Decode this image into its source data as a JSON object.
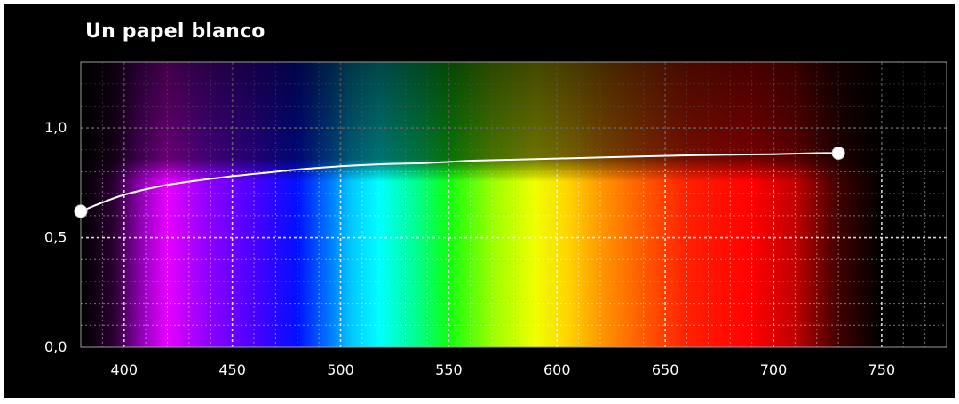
{
  "chart_data": {
    "type": "line",
    "title": "Un papel blanco",
    "xlabel": "",
    "ylabel": "",
    "xlim": [
      380,
      780
    ],
    "ylim": [
      0,
      1.3
    ],
    "x_ticks": [
      400,
      450,
      500,
      550,
      600,
      650,
      700,
      750
    ],
    "x_tick_labels": [
      "400",
      "450",
      "500",
      "550",
      "600",
      "650",
      "700",
      "750"
    ],
    "y_ticks": [
      0,
      0.5,
      1
    ],
    "y_tick_labels": [
      "0,0",
      "0,5",
      "1,0"
    ],
    "grid": true,
    "background": "visible light spectrum",
    "curve_color": "#ffffff",
    "series": [
      {
        "x": [
          380,
          390,
          400,
          410,
          420,
          430,
          440,
          450,
          460,
          470,
          480,
          500,
          520,
          540,
          560,
          580,
          600,
          620,
          640,
          660,
          680,
          700,
          720,
          730
        ],
        "values": [
          0.62,
          0.66,
          0.695,
          0.72,
          0.74,
          0.755,
          0.768,
          0.78,
          0.79,
          0.8,
          0.81,
          0.825,
          0.835,
          0.84,
          0.85,
          0.855,
          0.86,
          0.865,
          0.87,
          0.875,
          0.878,
          0.88,
          0.885,
          0.885
        ],
        "endpoints_marked": true
      }
    ],
    "spectrum_stops": [
      {
        "nm": 380,
        "color": "#000000"
      },
      {
        "nm": 395,
        "color": "#2a0030"
      },
      {
        "nm": 410,
        "color": "#a000c8"
      },
      {
        "nm": 420,
        "color": "#e600ff"
      },
      {
        "nm": 440,
        "color": "#8a00ff"
      },
      {
        "nm": 460,
        "color": "#4a00ff"
      },
      {
        "nm": 480,
        "color": "#0010ff"
      },
      {
        "nm": 495,
        "color": "#0078ff"
      },
      {
        "nm": 505,
        "color": "#00c8ff"
      },
      {
        "nm": 518,
        "color": "#00ffff"
      },
      {
        "nm": 535,
        "color": "#00ff90"
      },
      {
        "nm": 550,
        "color": "#10ff10"
      },
      {
        "nm": 570,
        "color": "#9aff00"
      },
      {
        "nm": 590,
        "color": "#f0ff00"
      },
      {
        "nm": 605,
        "color": "#ffd400"
      },
      {
        "nm": 620,
        "color": "#ff9800"
      },
      {
        "nm": 640,
        "color": "#ff5a00"
      },
      {
        "nm": 660,
        "color": "#ff2000"
      },
      {
        "nm": 690,
        "color": "#ff0000"
      },
      {
        "nm": 710,
        "color": "#c00000"
      },
      {
        "nm": 730,
        "color": "#400000"
      },
      {
        "nm": 750,
        "color": "#000000"
      },
      {
        "nm": 780,
        "color": "#000000"
      }
    ]
  }
}
